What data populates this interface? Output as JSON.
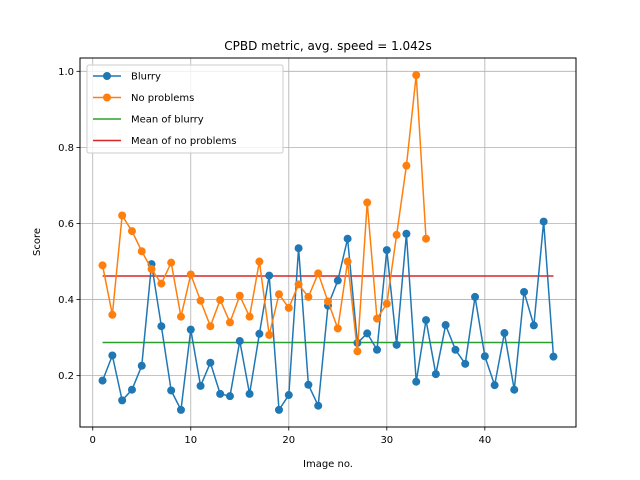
{
  "chart_data": {
    "type": "line",
    "title": "CPBD metric, avg. speed = 1.042s",
    "xlabel": "Image no.",
    "ylabel": "Score",
    "xlim": [
      -1.3,
      49.3
    ],
    "ylim": [
      0.065,
      1.035
    ],
    "x_ticks": [
      0,
      10,
      20,
      30,
      40
    ],
    "y_ticks": [
      0.2,
      0.4,
      0.6,
      0.8,
      1.0
    ],
    "x_tick_labels": [
      "0",
      "10",
      "20",
      "30",
      "40"
    ],
    "y_tick_labels": [
      "0.2",
      "0.4",
      "0.6",
      "0.8",
      "1.0"
    ],
    "grid": true,
    "legend_position": "top-left",
    "series": [
      {
        "name": "Blurry",
        "color": "#1f77b4",
        "marker": "circle",
        "x": [
          1,
          2,
          3,
          4,
          5,
          6,
          7,
          8,
          9,
          10,
          11,
          12,
          13,
          14,
          15,
          16,
          17,
          18,
          19,
          20,
          21,
          22,
          23,
          24,
          25,
          26,
          27,
          28,
          29,
          30,
          31,
          32,
          33,
          34,
          35,
          36,
          37,
          38,
          39,
          40,
          41,
          42,
          43,
          44,
          45,
          46,
          47
        ],
        "values": [
          0.187,
          0.253,
          0.135,
          0.163,
          0.226,
          0.493,
          0.33,
          0.161,
          0.11,
          0.321,
          0.173,
          0.234,
          0.152,
          0.146,
          0.291,
          0.152,
          0.31,
          0.463,
          0.11,
          0.149,
          0.535,
          0.176,
          0.121,
          0.384,
          0.45,
          0.56,
          0.286,
          0.311,
          0.268,
          0.53,
          0.281,
          0.573,
          0.184,
          0.346,
          0.204,
          0.333,
          0.268,
          0.231,
          0.407,
          0.251,
          0.175,
          0.312,
          0.163,
          0.42,
          0.332,
          0.605,
          0.25
        ]
      },
      {
        "name": "No problems",
        "color": "#ff7f0e",
        "marker": "circle",
        "x": [
          1,
          2,
          3,
          4,
          5,
          6,
          7,
          8,
          9,
          10,
          11,
          12,
          13,
          14,
          15,
          16,
          17,
          18,
          19,
          20,
          21,
          22,
          23,
          24,
          25,
          26,
          27,
          28,
          29,
          30,
          31,
          32,
          33,
          34
        ],
        "values": [
          0.49,
          0.36,
          0.621,
          0.58,
          0.527,
          0.48,
          0.442,
          0.497,
          0.355,
          0.466,
          0.397,
          0.33,
          0.399,
          0.34,
          0.41,
          0.355,
          0.5,
          0.307,
          0.414,
          0.378,
          0.44,
          0.407,
          0.469,
          0.395,
          0.324,
          0.5,
          0.264,
          0.655,
          0.35,
          0.389,
          0.57,
          0.752,
          0.99,
          0.56
        ]
      },
      {
        "name": "Mean of blurry",
        "color": "#2ca02c",
        "marker": "none",
        "x": [
          1,
          47
        ],
        "values": [
          0.287,
          0.287
        ]
      },
      {
        "name": "Mean of no problems",
        "color": "#d62728",
        "marker": "none",
        "x": [
          1,
          47
        ],
        "values": [
          0.462,
          0.462
        ]
      }
    ]
  }
}
